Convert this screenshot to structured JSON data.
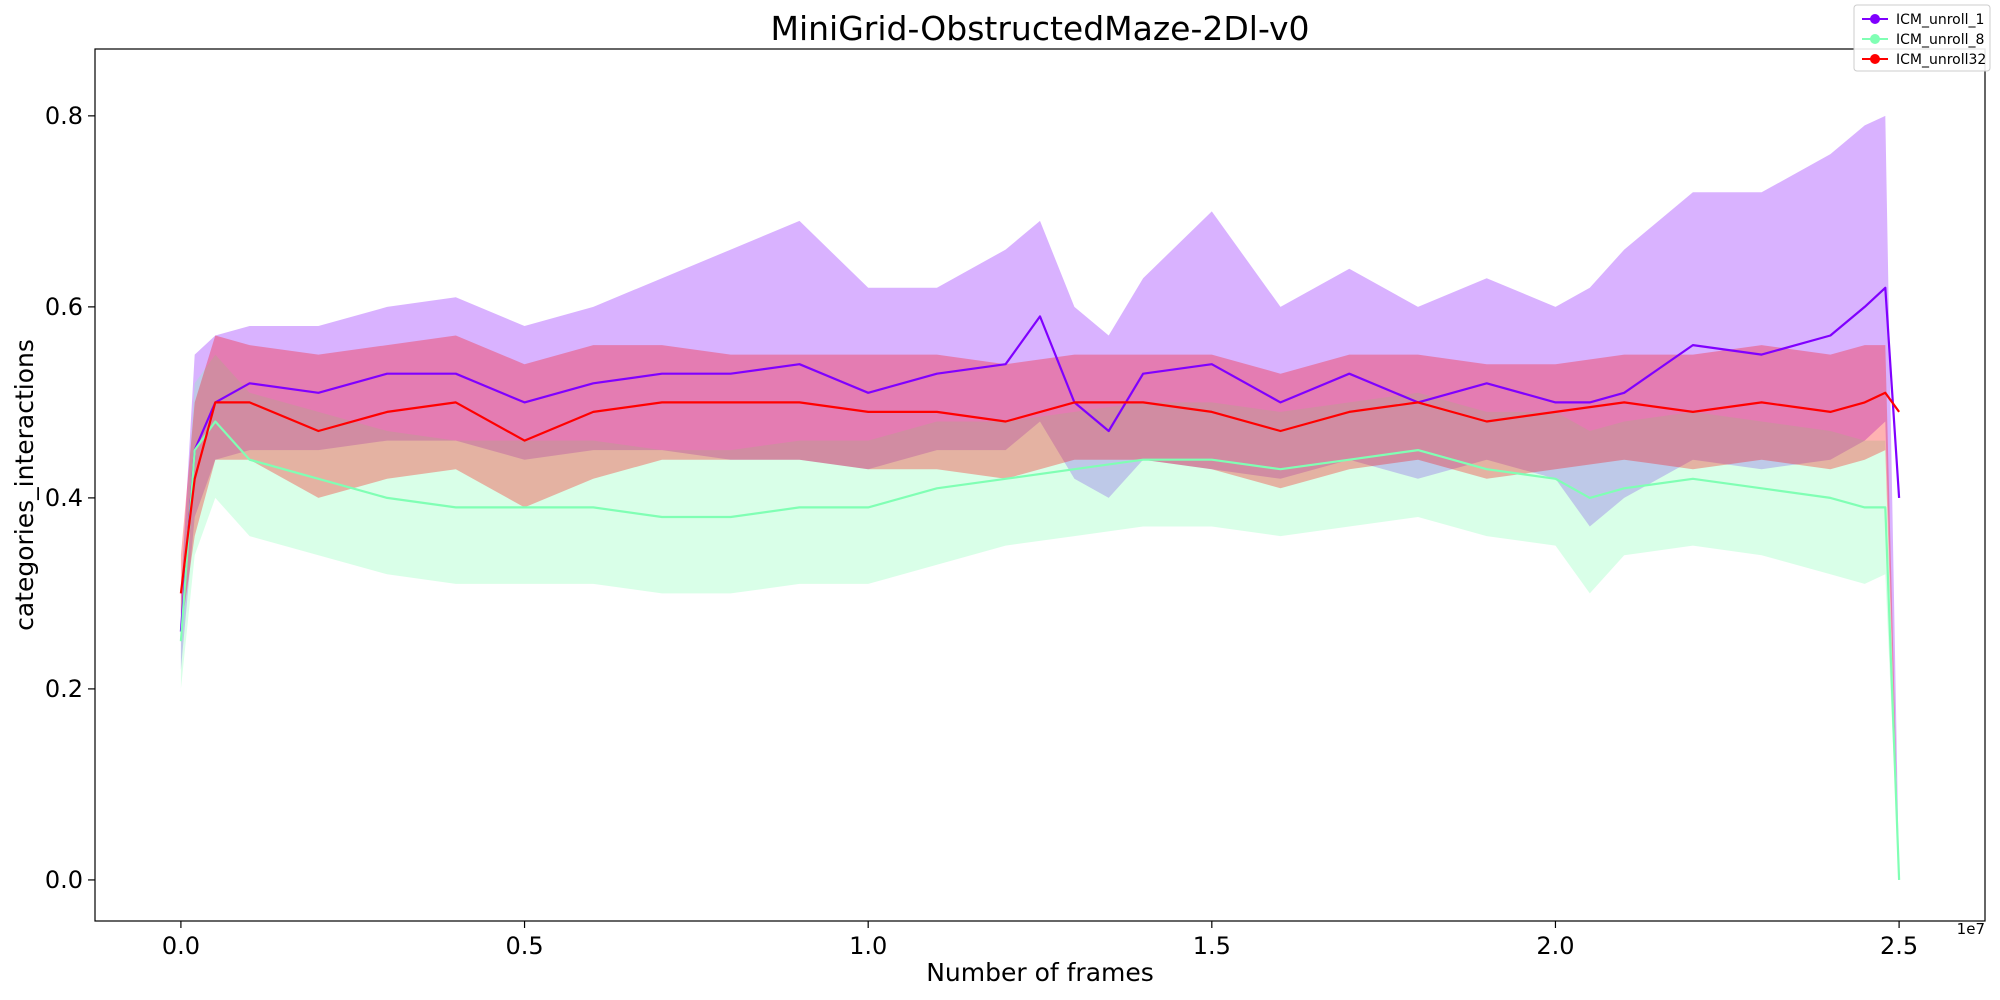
{
  "chart_data": {
    "type": "line",
    "title": "MiniGrid-ObstructedMaze-2Dl-v0",
    "xlabel": "Number of frames",
    "ylabel": "categories_interactions",
    "x_offset_text": "1e7",
    "xlim": [
      -0.125,
      2.625
    ],
    "ylim": [
      -0.043,
      0.87
    ],
    "xticks": [
      0.0,
      0.5,
      1.0,
      1.5,
      2.0,
      2.5
    ],
    "xtick_labels": [
      "0.0",
      "0.5",
      "1.0",
      "1.5",
      "2.0",
      "2.5"
    ],
    "yticks": [
      0.0,
      0.2,
      0.4,
      0.6,
      0.8
    ],
    "ytick_labels": [
      "0.0",
      "0.2",
      "0.4",
      "0.6",
      "0.8"
    ],
    "grid": false,
    "legend_position": "top-right",
    "series": [
      {
        "name": "ICM_unroll_1",
        "color": "#8000ff",
        "x": [
          0.0,
          0.02,
          0.05,
          0.1,
          0.2,
          0.3,
          0.4,
          0.5,
          0.6,
          0.7,
          0.8,
          0.9,
          1.0,
          1.1,
          1.2,
          1.25,
          1.3,
          1.35,
          1.4,
          1.5,
          1.6,
          1.7,
          1.8,
          1.9,
          2.0,
          2.05,
          2.1,
          2.2,
          2.3,
          2.4,
          2.45,
          2.48,
          2.5
        ],
        "mean": [
          0.26,
          0.45,
          0.5,
          0.52,
          0.51,
          0.53,
          0.53,
          0.5,
          0.52,
          0.53,
          0.53,
          0.54,
          0.51,
          0.53,
          0.54,
          0.59,
          0.5,
          0.47,
          0.53,
          0.54,
          0.5,
          0.53,
          0.5,
          0.52,
          0.5,
          0.5,
          0.51,
          0.56,
          0.55,
          0.57,
          0.6,
          0.62,
          0.4
        ],
        "upper": [
          0.3,
          0.55,
          0.57,
          0.58,
          0.58,
          0.6,
          0.61,
          0.58,
          0.6,
          0.63,
          0.66,
          0.69,
          0.62,
          0.62,
          0.66,
          0.69,
          0.6,
          0.57,
          0.63,
          0.7,
          0.6,
          0.64,
          0.6,
          0.63,
          0.6,
          0.62,
          0.66,
          0.72,
          0.72,
          0.76,
          0.79,
          0.8,
          0.0
        ],
        "lower": [
          0.22,
          0.38,
          0.44,
          0.45,
          0.45,
          0.46,
          0.46,
          0.44,
          0.45,
          0.45,
          0.44,
          0.44,
          0.43,
          0.45,
          0.45,
          0.48,
          0.42,
          0.4,
          0.44,
          0.43,
          0.42,
          0.44,
          0.42,
          0.44,
          0.42,
          0.37,
          0.4,
          0.44,
          0.43,
          0.44,
          0.46,
          0.48,
          0.0
        ]
      },
      {
        "name": "ICM_unroll_8",
        "color": "#80ffb4",
        "x": [
          0.0,
          0.02,
          0.05,
          0.1,
          0.2,
          0.3,
          0.4,
          0.5,
          0.6,
          0.7,
          0.8,
          0.9,
          1.0,
          1.1,
          1.2,
          1.3,
          1.4,
          1.5,
          1.6,
          1.7,
          1.8,
          1.9,
          2.0,
          2.05,
          2.1,
          2.2,
          2.3,
          2.4,
          2.45,
          2.48,
          2.5
        ],
        "mean": [
          0.25,
          0.45,
          0.48,
          0.44,
          0.42,
          0.4,
          0.39,
          0.39,
          0.39,
          0.38,
          0.38,
          0.39,
          0.39,
          0.41,
          0.42,
          0.43,
          0.44,
          0.44,
          0.43,
          0.44,
          0.45,
          0.43,
          0.42,
          0.4,
          0.41,
          0.42,
          0.41,
          0.4,
          0.39,
          0.39,
          0.0
        ],
        "upper": [
          0.29,
          0.52,
          0.55,
          0.51,
          0.49,
          0.47,
          0.46,
          0.46,
          0.46,
          0.45,
          0.45,
          0.46,
          0.46,
          0.48,
          0.48,
          0.49,
          0.5,
          0.5,
          0.49,
          0.5,
          0.51,
          0.49,
          0.49,
          0.47,
          0.48,
          0.49,
          0.48,
          0.47,
          0.46,
          0.46,
          0.0
        ],
        "lower": [
          0.2,
          0.34,
          0.4,
          0.36,
          0.34,
          0.32,
          0.31,
          0.31,
          0.31,
          0.3,
          0.3,
          0.31,
          0.31,
          0.33,
          0.35,
          0.36,
          0.37,
          0.37,
          0.36,
          0.37,
          0.38,
          0.36,
          0.35,
          0.3,
          0.34,
          0.35,
          0.34,
          0.32,
          0.31,
          0.32,
          0.0
        ]
      },
      {
        "name": "ICM_unroll32",
        "color": "#ff0000",
        "x": [
          0.0,
          0.02,
          0.05,
          0.1,
          0.2,
          0.3,
          0.4,
          0.5,
          0.6,
          0.7,
          0.8,
          0.9,
          1.0,
          1.1,
          1.2,
          1.3,
          1.4,
          1.5,
          1.6,
          1.7,
          1.8,
          1.9,
          2.0,
          2.1,
          2.2,
          2.3,
          2.4,
          2.45,
          2.48,
          2.5
        ],
        "mean": [
          0.3,
          0.42,
          0.5,
          0.5,
          0.47,
          0.49,
          0.5,
          0.46,
          0.49,
          0.5,
          0.5,
          0.5,
          0.49,
          0.49,
          0.48,
          0.5,
          0.5,
          0.49,
          0.47,
          0.49,
          0.5,
          0.48,
          0.49,
          0.5,
          0.49,
          0.5,
          0.49,
          0.5,
          0.51,
          0.49
        ],
        "upper": [
          0.34,
          0.5,
          0.57,
          0.56,
          0.55,
          0.56,
          0.57,
          0.54,
          0.56,
          0.56,
          0.55,
          0.55,
          0.55,
          0.55,
          0.54,
          0.55,
          0.55,
          0.55,
          0.53,
          0.55,
          0.55,
          0.54,
          0.54,
          0.55,
          0.55,
          0.56,
          0.55,
          0.56,
          0.56,
          0.0
        ],
        "lower": [
          0.26,
          0.36,
          0.44,
          0.44,
          0.4,
          0.42,
          0.43,
          0.39,
          0.42,
          0.44,
          0.44,
          0.44,
          0.43,
          0.43,
          0.42,
          0.44,
          0.44,
          0.43,
          0.41,
          0.43,
          0.44,
          0.42,
          0.43,
          0.44,
          0.43,
          0.44,
          0.43,
          0.44,
          0.45,
          0.0
        ]
      }
    ]
  }
}
